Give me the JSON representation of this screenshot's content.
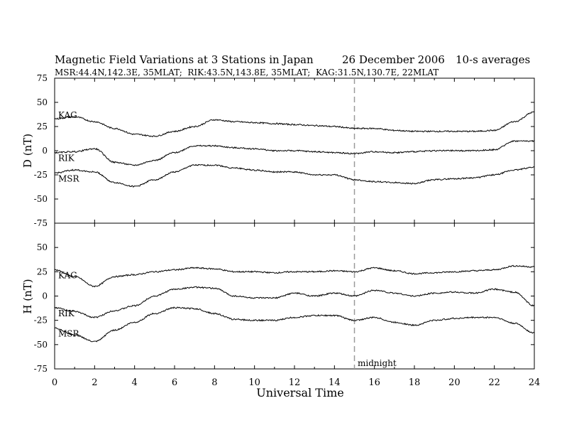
{
  "header": {
    "title": "Magnetic Field Variations at 3 Stations in Japan",
    "date": "26 December 2006",
    "note": "10-s averages",
    "stations_line": "MSR:44.4N,142.3E, 35MLAT;  RIK:43.5N,143.8E, 35MLAT;  KAG:31.5N,130.7E, 22MLAT"
  },
  "chart_data": {
    "type": "line",
    "xlabel": "Universal Time",
    "x_ticks": [
      "0",
      "2",
      "4",
      "6",
      "8",
      "10",
      "12",
      "14",
      "16",
      "18",
      "20",
      "22",
      "24"
    ],
    "xlim": [
      0,
      24
    ],
    "annotation": {
      "text": "midnight",
      "x": 15
    },
    "panels": [
      {
        "ylabel": "D (nT)",
        "ylim": [
          -75,
          75
        ],
        "y_ticks": [
          "75",
          "50",
          "25",
          "0",
          "-25",
          "-50",
          "-75"
        ],
        "series": [
          {
            "name": "KAG",
            "x": [
              0,
              1,
              2,
              3,
              4,
              5,
              6,
              7,
              8,
              9,
              10,
              11,
              12,
              13,
              14,
              15,
              16,
              17,
              18,
              19,
              20,
              21,
              22,
              23,
              24
            ],
            "values": [
              33,
              35,
              30,
              23,
              17,
              15,
              20,
              25,
              32,
              30,
              29,
              28,
              27,
              26,
              25,
              23,
              23,
              21,
              20,
              20,
              20,
              20,
              21,
              30,
              40
            ]
          },
          {
            "name": "RIK",
            "x": [
              0,
              1,
              2,
              3,
              4,
              5,
              6,
              7,
              8,
              9,
              10,
              11,
              12,
              13,
              14,
              15,
              16,
              17,
              18,
              19,
              20,
              21,
              22,
              23,
              24
            ],
            "values": [
              -2,
              -1,
              2,
              -12,
              -15,
              -10,
              -2,
              5,
              5,
              3,
              2,
              0,
              0,
              -1,
              -2,
              -3,
              -1,
              -2,
              -1,
              0,
              0,
              0,
              1,
              10,
              10
            ]
          },
          {
            "name": "MSR",
            "x": [
              0,
              1,
              2,
              3,
              4,
              5,
              6,
              7,
              8,
              9,
              10,
              11,
              12,
              13,
              14,
              15,
              16,
              17,
              18,
              19,
              20,
              21,
              22,
              23,
              24
            ],
            "values": [
              -23,
              -20,
              -22,
              -33,
              -37,
              -30,
              -22,
              -15,
              -15,
              -18,
              -20,
              -22,
              -22,
              -25,
              -25,
              -30,
              -32,
              -33,
              -34,
              -30,
              -29,
              -28,
              -25,
              -20,
              -17
            ]
          }
        ]
      },
      {
        "ylabel": "H (nT)",
        "ylim": [
          -75,
          75
        ],
        "y_ticks": [
          "75",
          "50",
          "25",
          "0",
          "-25",
          "-50",
          "-75"
        ],
        "series": [
          {
            "name": "KAG",
            "x": [
              0,
              1,
              2,
              3,
              4,
              5,
              6,
              7,
              8,
              9,
              10,
              11,
              12,
              13,
              14,
              15,
              16,
              17,
              18,
              19,
              20,
              21,
              22,
              23,
              24
            ],
            "values": [
              27,
              20,
              10,
              20,
              22,
              25,
              27,
              29,
              28,
              25,
              25,
              24,
              25,
              25,
              26,
              25,
              29,
              26,
              23,
              24,
              25,
              26,
              27,
              31,
              30
            ]
          },
          {
            "name": "RIK",
            "x": [
              0,
              1,
              2,
              3,
              4,
              5,
              6,
              7,
              8,
              9,
              10,
              11,
              12,
              13,
              14,
              15,
              16,
              17,
              18,
              19,
              20,
              21,
              22,
              23,
              24
            ],
            "values": [
              -12,
              -16,
              -22,
              -15,
              -10,
              0,
              7,
              9,
              8,
              0,
              -2,
              -2,
              3,
              0,
              3,
              0,
              6,
              3,
              0,
              3,
              4,
              3,
              7,
              4,
              -10
            ]
          },
          {
            "name": "MSR",
            "x": [
              0,
              1,
              2,
              3,
              4,
              5,
              6,
              7,
              8,
              9,
              10,
              11,
              12,
              13,
              14,
              15,
              16,
              17,
              18,
              19,
              20,
              21,
              22,
              23,
              24
            ],
            "values": [
              -33,
              -40,
              -47,
              -35,
              -27,
              -18,
              -12,
              -13,
              -18,
              -24,
              -25,
              -25,
              -22,
              -20,
              -20,
              -25,
              -22,
              -27,
              -30,
              -25,
              -23,
              -22,
              -22,
              -28,
              -38
            ]
          }
        ]
      }
    ]
  }
}
